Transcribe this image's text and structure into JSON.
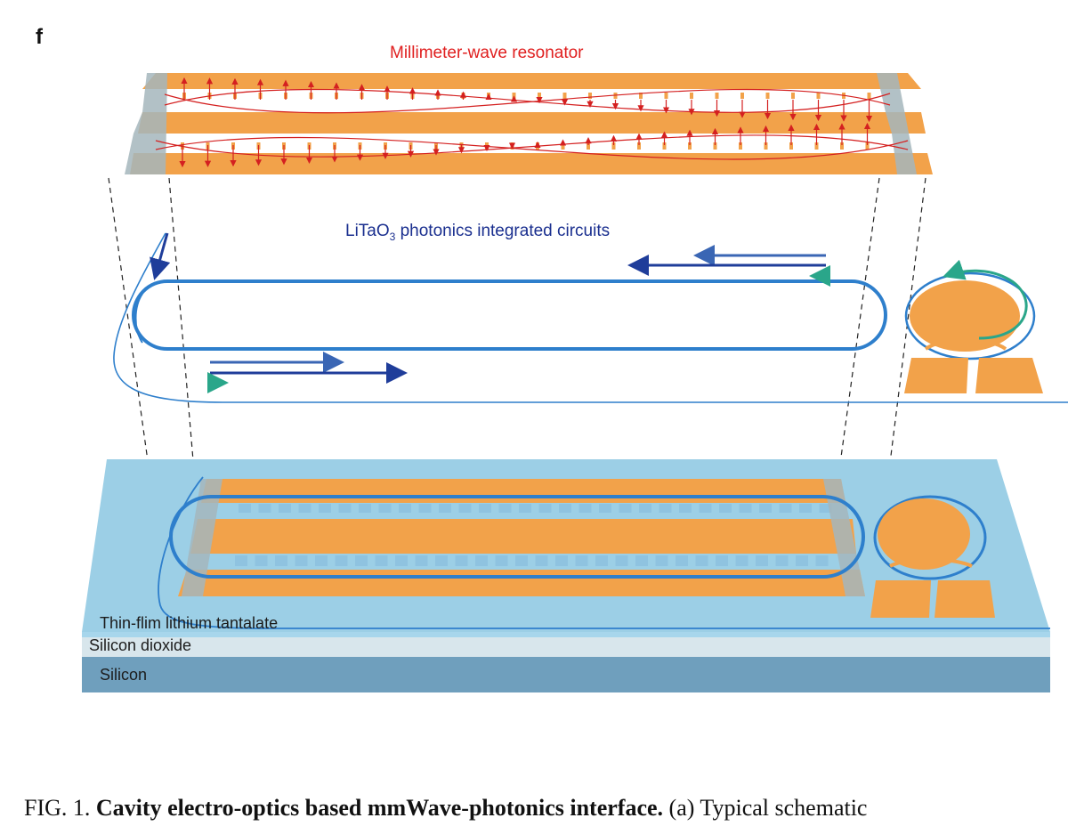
{
  "panel_label": "f",
  "labels": {
    "resonator": "Millimeter-wave resonator",
    "pic_material_prefix": "LiTa",
    "pic_material_o": "O",
    "pic_material_sub": "3",
    "pic_text": " photonics integrated circuits"
  },
  "layers": [
    "Thin-flim lithium tantalate",
    "Silicon dioxide",
    "Silicon"
  ],
  "caption": {
    "fig_no": "FIG. 1.",
    "title": "Cavity electro-optics based mmWave-photonics interface.",
    "text": "(a) Typical schematic"
  },
  "colors": {
    "gold": "#f2a24a",
    "ring_blue": "#2e7fcc",
    "arrow_dark_blue": "#1f3d9a",
    "arrow_mid_blue": "#3a66b4",
    "arrow_teal": "#2aa68a",
    "field_red": "#d42020",
    "substrate_top": "#9ccfe6",
    "silicon": "#6f9fbd"
  }
}
